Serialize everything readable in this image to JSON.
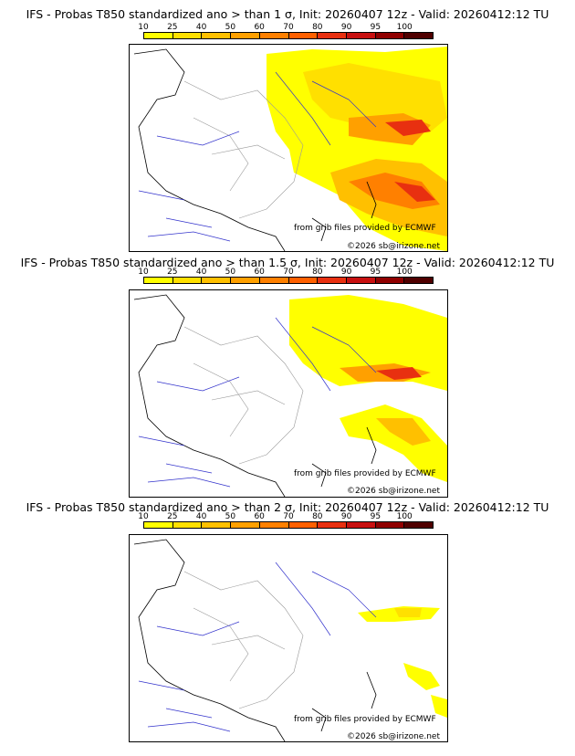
{
  "panels": [
    {
      "title": "IFS - Probas T850  standardized ano > than 1 σ, Init: 20260407 12z - Valid: 20260412:12 TU"
    },
    {
      "title": "IFS - Probas T850  standardized ano > than 1.5 σ, Init: 20260407 12z - Valid: 20260412:12 TU"
    },
    {
      "title": "IFS - Probas T850  standardized ano > than 2 σ, Init: 20260407 12z - Valid: 20260412:12 TU"
    }
  ],
  "colorbar": {
    "labels": [
      "10",
      "25",
      "40",
      "50",
      "60",
      "70",
      "80",
      "90",
      "95",
      "100"
    ],
    "colors": [
      "#ffff00",
      "#ffe000",
      "#ffc000",
      "#ffa000",
      "#ff8000",
      "#ff6000",
      "#e83010",
      "#c81010",
      "#900000",
      "#500000"
    ]
  },
  "credit": {
    "source": "from grib files provided by ECMWF",
    "copyright": "©2026 sb@irizone.net"
  }
}
